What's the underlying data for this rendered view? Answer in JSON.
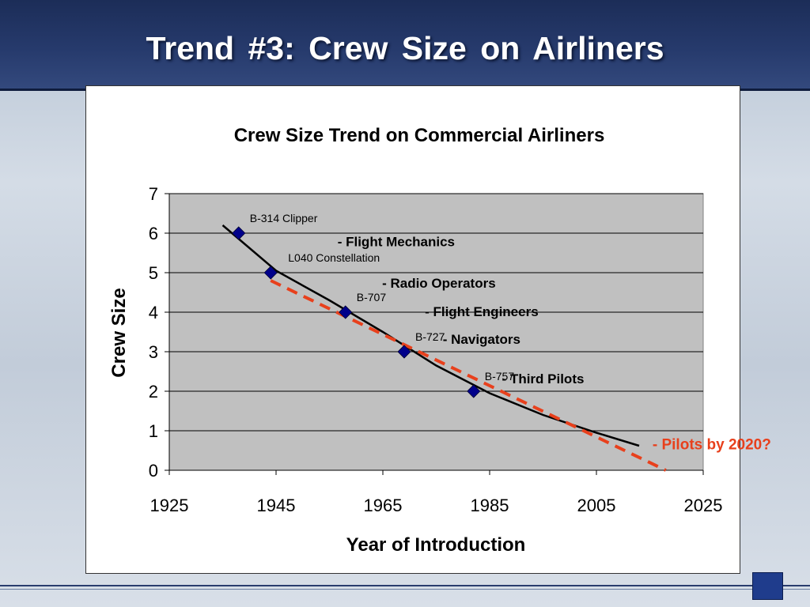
{
  "slide": {
    "title": "Trend #3: Crew Size on Airliners"
  },
  "colors": {
    "header": "#1c2d58",
    "plot_area": "#c0c0c0",
    "marker": "#00008b",
    "trend_line": "#000000",
    "projection": "#e8401c",
    "projection_label": "#e8401c"
  },
  "chart_data": {
    "type": "scatter",
    "title": "Crew Size Trend on Commercial Airliners",
    "xlabel": "Year of Introduction",
    "ylabel": "Crew Size",
    "xlim": [
      1925,
      2025
    ],
    "ylim": [
      0,
      7
    ],
    "x_ticks": [
      "1925",
      "1945",
      "1965",
      "1985",
      "2005",
      "2025"
    ],
    "y_ticks": [
      "0",
      "1",
      "2",
      "3",
      "4",
      "5",
      "6",
      "7"
    ],
    "grid": "horizontal",
    "points": [
      {
        "label": "B-314 Clipper",
        "x": 1938,
        "y": 6
      },
      {
        "label": "L040 Constellation",
        "x": 1944,
        "y": 5
      },
      {
        "label": "B-707",
        "x": 1958,
        "y": 4
      },
      {
        "label": "B-727",
        "x": 1969,
        "y": 3
      },
      {
        "label": "B-757",
        "x": 1982,
        "y": 2
      }
    ],
    "trend_curve": {
      "style": "solid",
      "x": [
        1935,
        1945,
        1955,
        1965,
        1975,
        1985,
        1995,
        2005,
        2013
      ],
      "y": [
        6.2,
        5.05,
        4.3,
        3.5,
        2.65,
        1.95,
        1.4,
        0.95,
        0.62
      ]
    },
    "projection_line": {
      "style": "dashed",
      "x": [
        1944,
        2018
      ],
      "y": [
        4.8,
        0
      ]
    },
    "annotations": [
      {
        "text": "- Flight Mechanics",
        "x": 1967.5,
        "y": 5.67
      },
      {
        "text": "- Radio Operators",
        "x": 1975.5,
        "y": 4.62
      },
      {
        "text": "- Flight Engineers",
        "x": 1983.5,
        "y": 3.9
      },
      {
        "text": "- Navigators",
        "x": 1983.5,
        "y": 3.2
      },
      {
        "text": "- Third Pilots",
        "x": 1995,
        "y": 2.2
      }
    ],
    "projection_label": {
      "text": "- Pilots by 2020?",
      "x": 2015.5,
      "y": 0.53
    }
  }
}
